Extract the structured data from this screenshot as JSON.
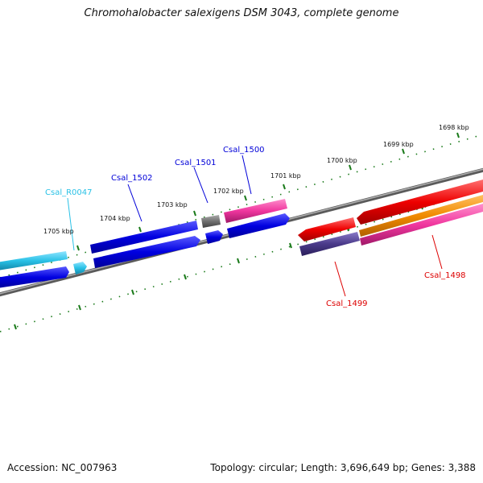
{
  "header": {
    "title": "Chromohalobacter salexigens DSM 3043, complete genome"
  },
  "footer": {
    "accession": "Accession: NC_007963",
    "summary": "Topology: circular; Length: 3,696,649 bp; Genes: 3,388"
  },
  "scale": {
    "ticks": [
      "1698 kbp",
      "1699 kbp",
      "1700 kbp",
      "1701 kbp",
      "1702 kbp",
      "1703 kbp",
      "1704 kbp",
      "1705 kbp"
    ]
  },
  "genes": [
    {
      "label": "Csal_R0047",
      "color": "#29c1e6"
    },
    {
      "label": "Csal_1502",
      "color": "#0000d8"
    },
    {
      "label": "Csal_1501",
      "color": "#0000d8"
    },
    {
      "label": "Csal_1500",
      "color": "#0000d8"
    },
    {
      "label": "Csal_1499",
      "color": "#dd0000"
    },
    {
      "label": "Csal_1498",
      "color": "#dd0000"
    }
  ],
  "colors": {
    "backbone": "#808080",
    "tick": "#1a7a1a",
    "blue_feature": "#0a0ae0",
    "cyan_feature": "#29c1e6",
    "pink_feature": "#f0369e",
    "red_feature": "#e80000",
    "orange_feature": "#f08a00",
    "navy_feature": "#4a3a8a",
    "grey_feature": "#707070"
  }
}
